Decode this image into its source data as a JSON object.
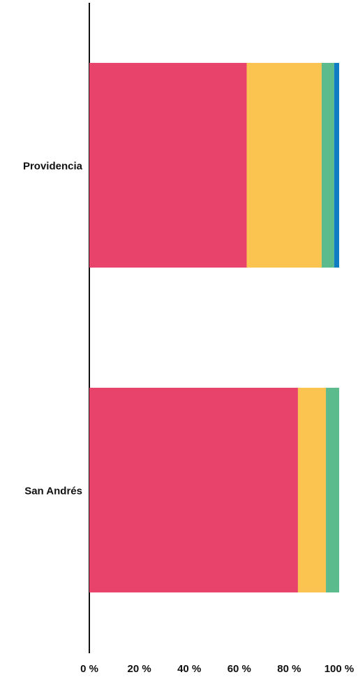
{
  "chart_data": {
    "type": "stacked_barh",
    "categories": [
      "Providencia",
      "San Andrés"
    ],
    "series": [
      {
        "color": "#e8436b",
        "values": [
          63,
          83.5
        ]
      },
      {
        "color": "#fbc450",
        "values": [
          30,
          11.2
        ]
      },
      {
        "color": "#5cbb8c",
        "values": [
          5,
          5.3
        ]
      },
      {
        "color": "#0f7dc4",
        "values": [
          2,
          0
        ]
      }
    ],
    "xlim": [
      0,
      100
    ],
    "xticks": [
      {
        "value": 0,
        "label": "0 %"
      },
      {
        "value": 20,
        "label": "20 %"
      },
      {
        "value": 40,
        "label": "40 %"
      },
      {
        "value": 60,
        "label": "60 %"
      },
      {
        "value": 80,
        "label": "80 %"
      },
      {
        "value": 100,
        "label": "100 %"
      }
    ],
    "grid": false
  }
}
